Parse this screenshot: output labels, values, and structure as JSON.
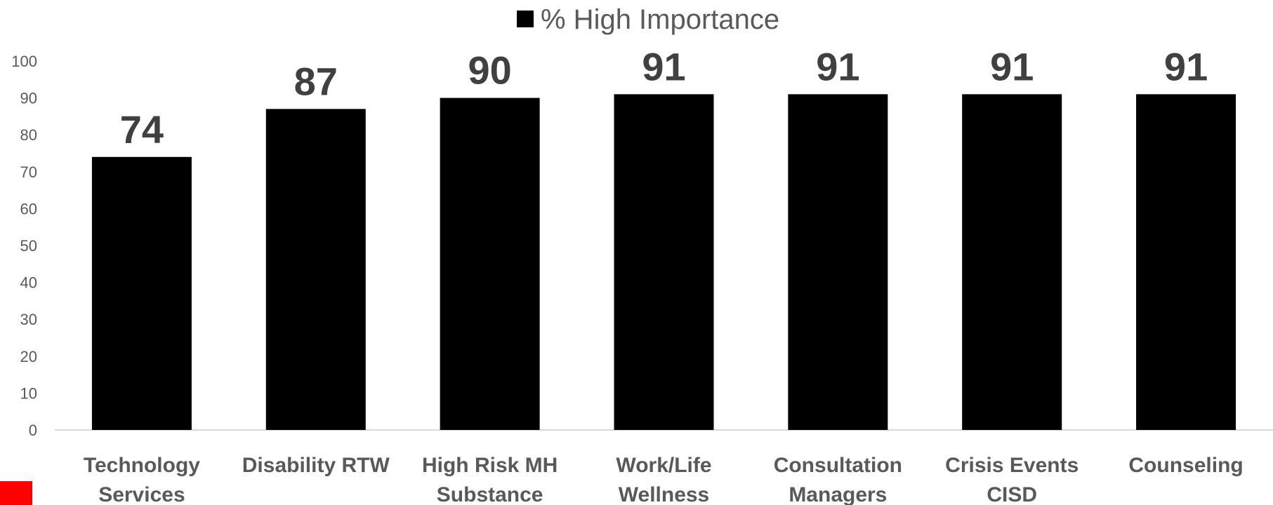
{
  "colors": {
    "bar": "#000000",
    "axis_text": "#595959",
    "axis_line": "#d9d9d9",
    "corner_mark": "#ff0000"
  },
  "legend": {
    "label": "% High Importance",
    "position": "top"
  },
  "chart_data": {
    "type": "bar",
    "title": "",
    "xlabel": "",
    "ylabel": "",
    "categories": [
      [
        "Technology",
        "Services"
      ],
      [
        "Disability RTW"
      ],
      [
        "High Risk MH",
        "Substance"
      ],
      [
        "Work/Life",
        "Wellness"
      ],
      [
        "Consultation",
        "Managers"
      ],
      [
        "Crisis Events",
        "CISD"
      ],
      [
        "Counseling"
      ]
    ],
    "series": [
      {
        "name": "% High Importance",
        "values": [
          74,
          87,
          90,
          91,
          91,
          91,
          91
        ]
      }
    ],
    "ylim": [
      0,
      100
    ],
    "yticks": [
      0,
      10,
      20,
      30,
      40,
      50,
      60,
      70,
      80,
      90,
      100
    ],
    "grid": false,
    "data_labels": true,
    "legend_placement": "top"
  }
}
